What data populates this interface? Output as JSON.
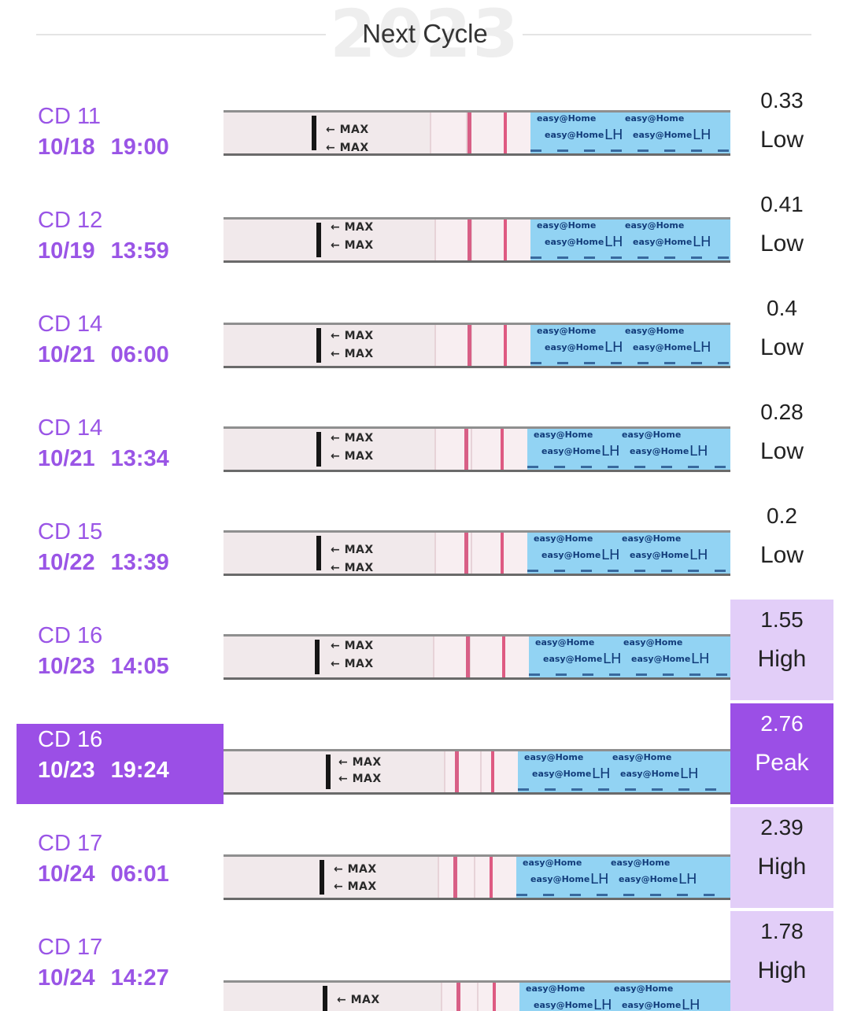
{
  "header": {
    "year": "2023",
    "title": "Next Cycle"
  },
  "strip_text": {
    "max": "← MAX",
    "brand": "easy@Home",
    "lh": "LH"
  },
  "colors": {
    "accent": "#9b4fe6",
    "high_bg": "#e2cef8",
    "label_text": "#9a55e6"
  },
  "entries": [
    {
      "cd": "CD 11",
      "datetime": "10/18 19:00",
      "value": "0.33",
      "level": "Low"
    },
    {
      "cd": "CD 12",
      "datetime": "10/19 13:59",
      "value": "0.41",
      "level": "Low"
    },
    {
      "cd": "CD 14",
      "datetime": "10/21 06:00",
      "value": "0.4",
      "level": "Low"
    },
    {
      "cd": "CD 14",
      "datetime": "10/21 13:34",
      "value": "0.28",
      "level": "Low"
    },
    {
      "cd": "CD 15",
      "datetime": "10/22 13:39",
      "value": "0.2",
      "level": "Low"
    },
    {
      "cd": "CD 16",
      "datetime": "10/23 14:05",
      "value": "1.55",
      "level": "High"
    },
    {
      "cd": "CD 16",
      "datetime": "10/23 19:24",
      "value": "2.76",
      "level": "Peak"
    },
    {
      "cd": "CD 17",
      "datetime": "10/24 06:01",
      "value": "2.39",
      "level": "High"
    },
    {
      "cd": "CD 17",
      "datetime": "10/24 14:27",
      "value": "1.78",
      "level": "High"
    }
  ]
}
